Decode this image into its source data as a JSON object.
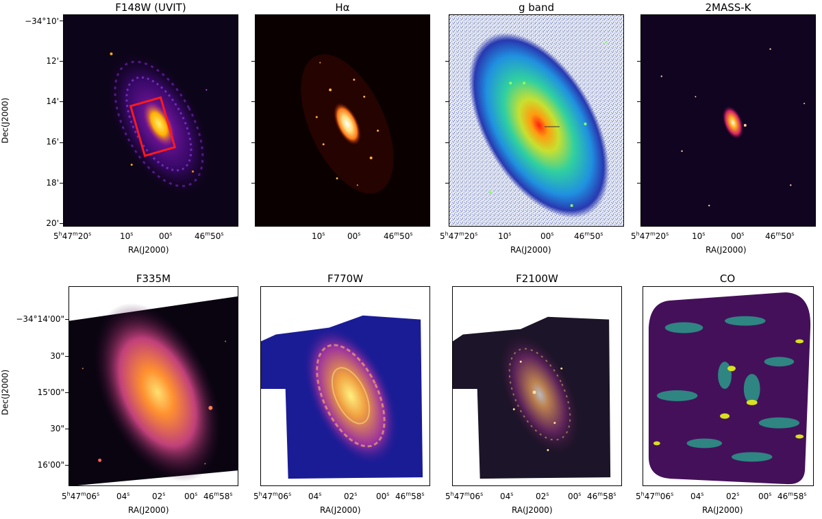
{
  "top_row": {
    "titles": [
      "F148W (UVIT)",
      "Hα",
      "g band",
      "2MASS-K"
    ],
    "dec_ticks": [
      "−34°10'",
      "12'",
      "14'",
      "16'",
      "18'",
      "20'"
    ],
    "ra_ticks": [
      "5h47m20s",
      "10s",
      "00s",
      "46m50s"
    ],
    "xlabel": "RA(J2000)",
    "ylabel": "Dec(J2000)"
  },
  "bottom_row": {
    "titles": [
      "F335M",
      "F770W",
      "F2100W",
      "CO"
    ],
    "dec_ticks": [
      "−34°14'00\"",
      "30\"",
      "15'00\"",
      "30\"",
      "16'00\""
    ],
    "ra_ticks": [
      "5h47m06s",
      "04s",
      "02s",
      "00s",
      "46m58s"
    ],
    "xlabel": "RA(J2000)",
    "ylabel": "Dec(J2000)"
  }
}
